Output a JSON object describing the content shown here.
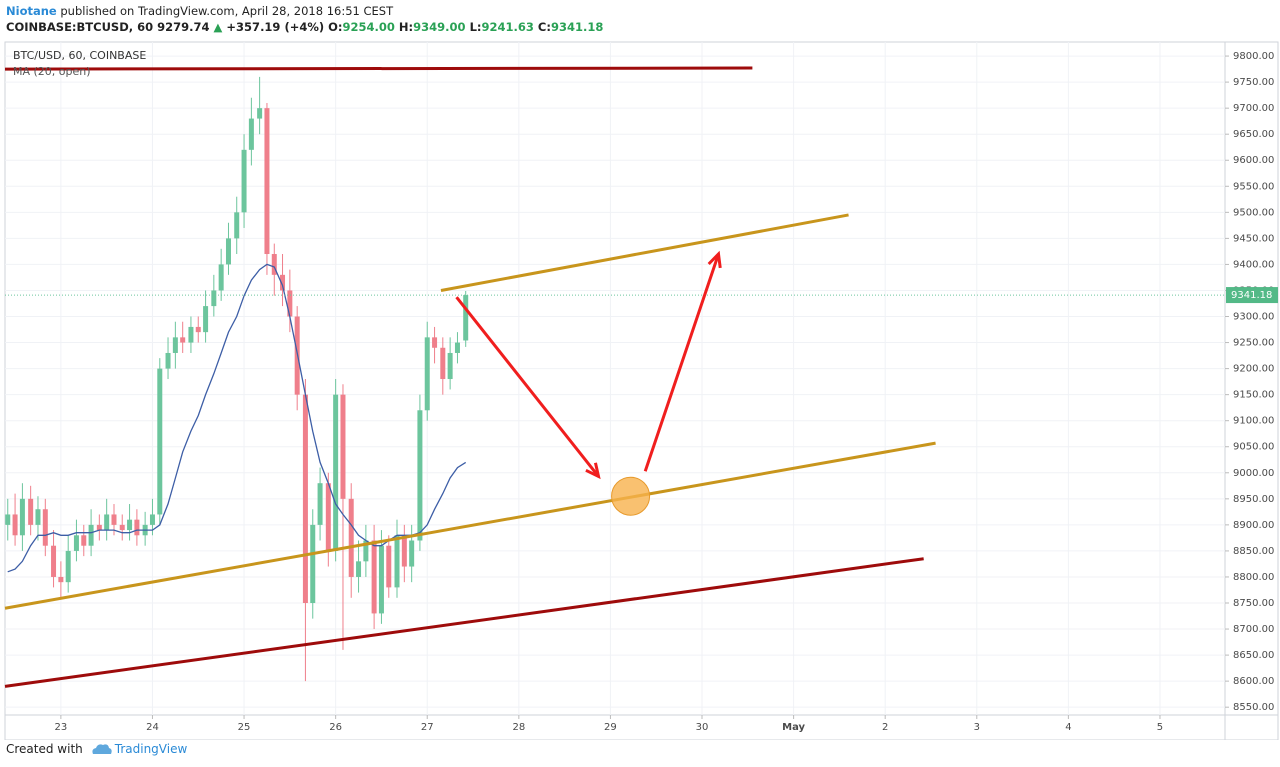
{
  "header": {
    "author": "Niotane",
    "published": "published on TradingView.com, April 28, 2018 16:51 CEST",
    "symbol": "COINBASE:BTCUSD, 60",
    "price": "9279.74",
    "arrow": "▲",
    "change": "+357.19 (+4%)",
    "ohlc": [
      [
        "O:",
        "9254.00"
      ],
      [
        "H:",
        "9349.00"
      ],
      [
        "L:",
        "9241.63"
      ],
      [
        "C:",
        "9341.18"
      ]
    ]
  },
  "footer": {
    "created": "Created with",
    "brand": "TradingView"
  },
  "chart_data": {
    "type": "candlestick",
    "title": "BTC/USD, 60, COINBASE",
    "indicator": "MA (20, open)",
    "up_color": "#6cc59d",
    "down_color": "#ef7f8b",
    "x": [
      22.42,
      22.5,
      22.58,
      22.67,
      22.75,
      22.83,
      22.92,
      23.0,
      23.08,
      23.17,
      23.25,
      23.33,
      23.42,
      23.5,
      23.58,
      23.67,
      23.75,
      23.83,
      23.92,
      24.0,
      24.08,
      24.17,
      24.25,
      24.33,
      24.42,
      24.5,
      24.58,
      24.67,
      24.75,
      24.83,
      24.92,
      25.0,
      25.08,
      25.17,
      25.25,
      25.33,
      25.42,
      25.5,
      25.58,
      25.67,
      25.75,
      25.83,
      25.92,
      26.0,
      26.08,
      26.17,
      26.25,
      26.33,
      26.42,
      26.5,
      26.58,
      26.67,
      26.75,
      26.83,
      26.92,
      27.0,
      27.08,
      27.17,
      27.25,
      27.33,
      27.42
    ],
    "open": [
      8900,
      8920,
      8880,
      8950,
      8900,
      8930,
      8860,
      8800,
      8790,
      8850,
      8880,
      8860,
      8900,
      8890,
      8920,
      8900,
      8890,
      8910,
      8880,
      8900,
      8920,
      9200,
      9230,
      9260,
      9250,
      9280,
      9270,
      9320,
      9350,
      9400,
      9450,
      9500,
      9620,
      9680,
      9700,
      9420,
      9380,
      9350,
      9300,
      9150,
      8750,
      8900,
      8980,
      8850,
      9150,
      8950,
      8800,
      8830,
      8870,
      8730,
      8860,
      8780,
      8880,
      8820,
      8870,
      9120,
      9260,
      9240,
      9180,
      9230,
      9254
    ],
    "high": [
      8950,
      8960,
      8980,
      8975,
      8955,
      8950,
      8890,
      8830,
      8880,
      8910,
      8900,
      8930,
      8920,
      8950,
      8940,
      8920,
      8940,
      8930,
      8925,
      8950,
      9220,
      9260,
      9290,
      9290,
      9300,
      9300,
      9350,
      9380,
      9430,
      9480,
      9530,
      9650,
      9720,
      9760,
      9710,
      9440,
      9420,
      9390,
      9320,
      9180,
      8930,
      9010,
      9000,
      9180,
      9170,
      8980,
      8870,
      8900,
      8900,
      8890,
      8880,
      8910,
      8900,
      8900,
      9150,
      9290,
      9280,
      9260,
      9260,
      9270,
      9349
    ],
    "low": [
      8870,
      8860,
      8850,
      8880,
      8870,
      8840,
      8780,
      8760,
      8770,
      8830,
      8840,
      8840,
      8870,
      8870,
      8880,
      8870,
      8870,
      8860,
      8860,
      8880,
      8900,
      9180,
      9200,
      9230,
      9230,
      9250,
      9250,
      9300,
      9330,
      9380,
      9420,
      9470,
      9590,
      9650,
      9380,
      9340,
      9320,
      9270,
      9120,
      8600,
      8720,
      8870,
      8820,
      8830,
      8660,
      8760,
      8770,
      8800,
      8700,
      8710,
      8760,
      8760,
      8790,
      8790,
      8850,
      9100,
      9210,
      9150,
      9160,
      9210,
      9241.63
    ],
    "close": [
      8920,
      8880,
      8950,
      8900,
      8930,
      8860,
      8800,
      8790,
      8850,
      8880,
      8860,
      8900,
      8890,
      8920,
      8900,
      8890,
      8910,
      8880,
      8900,
      8920,
      9200,
      9230,
      9260,
      9250,
      9280,
      9270,
      9320,
      9350,
      9400,
      9450,
      9500,
      9620,
      9680,
      9700,
      9420,
      9380,
      9350,
      9300,
      9150,
      8750,
      8900,
      8980,
      8850,
      9150,
      8950,
      8800,
      8830,
      8870,
      8730,
      8860,
      8780,
      8880,
      8820,
      8870,
      9120,
      9260,
      9240,
      9180,
      9230,
      9250,
      9341.18
    ],
    "ma": {
      "color": "#3d5ea6",
      "values": [
        8810,
        8815,
        8830,
        8860,
        8880,
        8880,
        8885,
        8880,
        8880,
        8885,
        8885,
        8885,
        8890,
        8890,
        8890,
        8885,
        8885,
        8890,
        8890,
        8890,
        8900,
        8940,
        8990,
        9040,
        9080,
        9110,
        9150,
        9190,
        9230,
        9270,
        9300,
        9340,
        9370,
        9390,
        9400,
        9395,
        9360,
        9300,
        9230,
        9150,
        9080,
        9020,
        8980,
        8940,
        8920,
        8900,
        8880,
        8870,
        8860,
        8860,
        8870,
        8880,
        8880,
        8880,
        8885,
        8900,
        8930,
        8960,
        8990,
        9010,
        9020
      ]
    },
    "last_price": 9341.18,
    "drawings": [
      {
        "type": "line",
        "color": "#9e0b0b",
        "x": [
          22.39,
          30.55
        ],
        "y": [
          9775,
          9777
        ]
      },
      {
        "type": "line",
        "color": "#c8951c",
        "x": [
          27.15,
          31.6
        ],
        "y": [
          9350,
          9495
        ]
      },
      {
        "type": "line",
        "color": "#c8951c",
        "x": [
          22.39,
          32.55
        ],
        "y": [
          8740,
          9057
        ]
      },
      {
        "type": "line",
        "color": "#9e0b0b",
        "x": [
          22.39,
          32.42
        ],
        "y": [
          8590,
          8835
        ]
      },
      {
        "type": "arrow",
        "color": "#f01e1e",
        "x": [
          27.32,
          28.87
        ],
        "y": [
          9337,
          8993
        ]
      },
      {
        "type": "arrow",
        "color": "#f01e1e",
        "x": [
          29.38,
          30.18
        ],
        "y": [
          9003,
          9420
        ]
      },
      {
        "type": "circle",
        "color": "#f7b14c",
        "x": [
          29.22
        ],
        "y": [
          8955
        ]
      }
    ],
    "xlim": [
      22.39,
      35.71
    ],
    "xticks": [
      23,
      24,
      25,
      26,
      27,
      28,
      29,
      30,
      {
        "value": 31,
        "label": "May"
      },
      {
        "value": 32,
        "label": "2"
      },
      {
        "value": 33,
        "label": "3"
      },
      {
        "value": 34,
        "label": "4"
      },
      {
        "value": 35,
        "label": "5"
      }
    ],
    "ylim": [
      8535,
      9827
    ],
    "yticks": [
      {
        "value": 8550,
        "label": "8550.00"
      },
      {
        "value": 8600,
        "label": "8600.00"
      },
      {
        "value": 8650,
        "label": "8650.00"
      },
      {
        "value": 8700,
        "label": "8700.00"
      },
      {
        "value": 8750,
        "label": "8750.00"
      },
      {
        "value": 8800,
        "label": "8800.00"
      },
      {
        "value": 8850,
        "label": "8850.00"
      },
      {
        "value": 8900,
        "label": "8900.00"
      },
      {
        "value": 8950,
        "label": "8950.00"
      },
      {
        "value": 9000,
        "label": "9000.00"
      },
      {
        "value": 9050,
        "label": "9050.00"
      },
      {
        "value": 9100,
        "label": "9100.00"
      },
      {
        "value": 9150,
        "label": "9150.00"
      },
      {
        "value": 9200,
        "label": "9200.00"
      },
      {
        "value": 9250,
        "label": "9250.00"
      },
      {
        "value": 9300,
        "label": "9300.00"
      },
      {
        "value": 9350,
        "label": "9350.00"
      },
      {
        "value": 9400,
        "label": "9400.00"
      },
      {
        "value": 9450,
        "label": "9450.00"
      },
      {
        "value": 9500,
        "label": "9500.00"
      },
      {
        "value": 9550,
        "label": "9550.00"
      },
      {
        "value": 9600,
        "label": "9600.00"
      },
      {
        "value": 9650,
        "label": "9650.00"
      },
      {
        "value": 9700,
        "label": "9700.00"
      },
      {
        "value": 9750,
        "label": "9750.00"
      },
      {
        "value": 9800,
        "label": "9800.00"
      }
    ],
    "grid": true
  }
}
